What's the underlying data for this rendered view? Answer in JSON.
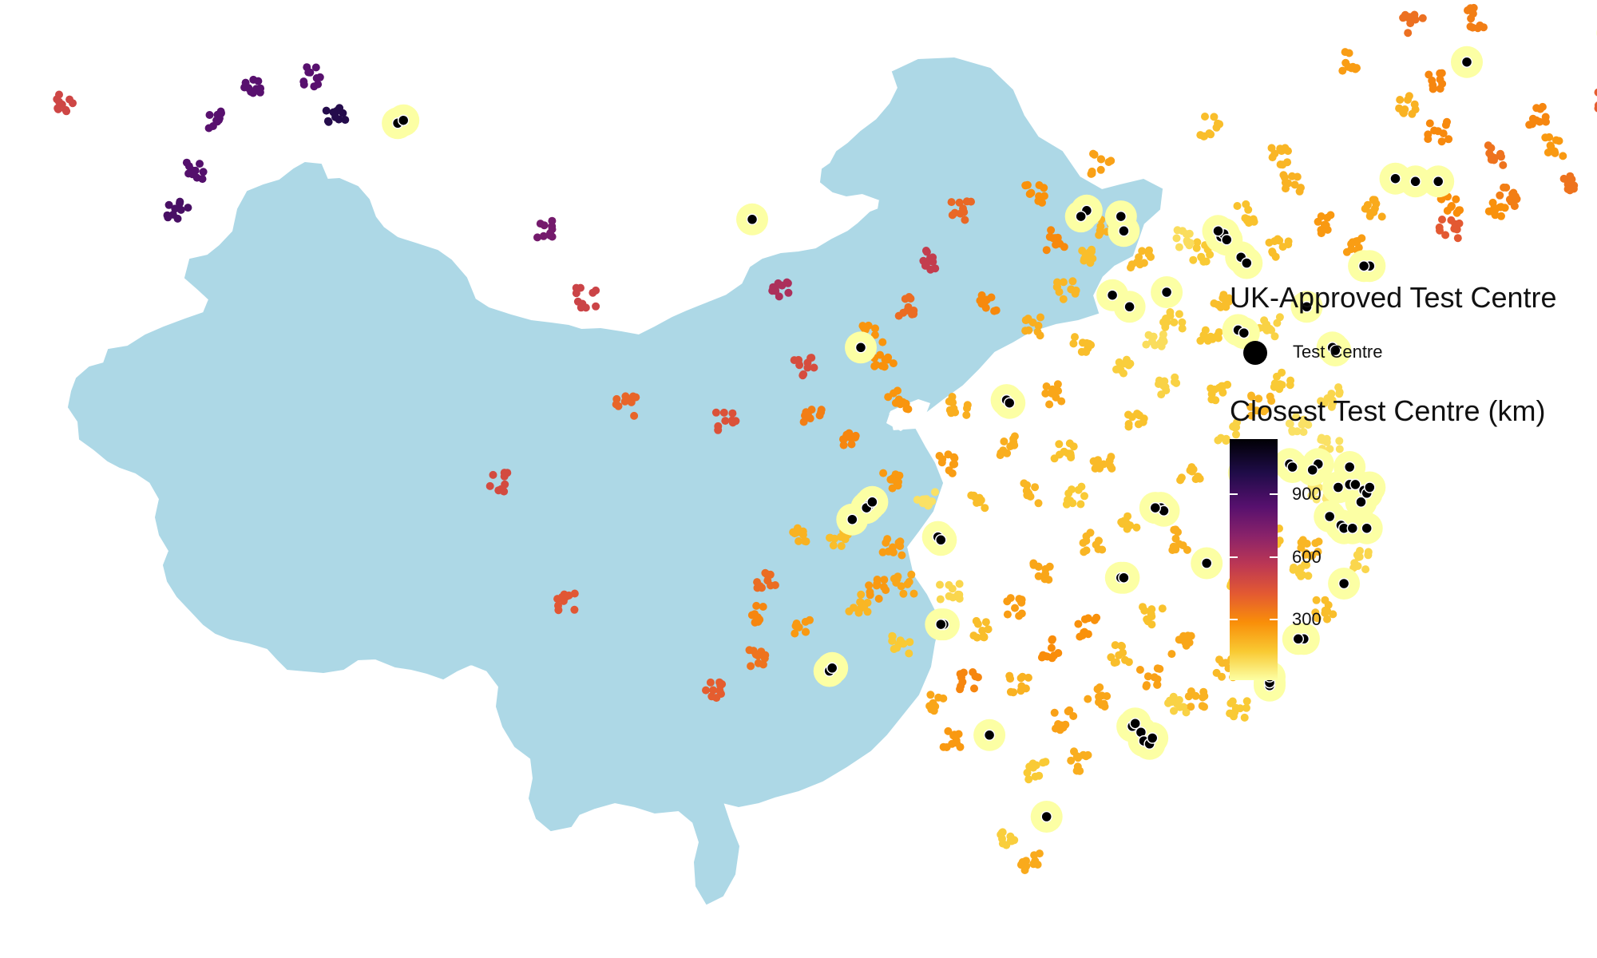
{
  "legend": {
    "points_title": "UK-Approved Test Centre",
    "points_item": "Test Centre",
    "color_title": "Closest Test Centre (km)",
    "ticks": [
      "900",
      "600",
      "300"
    ]
  },
  "colors": {
    "land": "#add8e6",
    "test_centre": "#000000",
    "scale": [
      "#fcffa4",
      "#f9c932",
      "#f98e09",
      "#e35932",
      "#bc3754",
      "#89226a",
      "#57106e",
      "#1f0c48",
      "#000004"
    ]
  },
  "chart_data": {
    "type": "scatter",
    "color_scale": {
      "name": "Closest Test Centre (km)",
      "domain": [
        0,
        1150
      ],
      "ticks": [
        300,
        600,
        900
      ]
    },
    "series": [
      {
        "name": "Test Centre",
        "points": [
          [
            130.1,
            46.9
          ],
          [
            131.0,
            47.3
          ],
          [
            122.5,
            41.9
          ],
          [
            123.2,
            41.8
          ],
          [
            124.0,
            41.8
          ],
          [
            125.0,
            45.9
          ],
          [
            121.6,
            38.9
          ],
          [
            121.4,
            38.9
          ],
          [
            116.4,
            39.9
          ],
          [
            116.5,
            40.0
          ],
          [
            116.3,
            40.1
          ],
          [
            116.6,
            39.8
          ],
          [
            117.1,
            39.2
          ],
          [
            117.3,
            39.0
          ],
          [
            120.3,
            36.1
          ],
          [
            120.4,
            36.0
          ],
          [
            117.0,
            36.7
          ],
          [
            117.2,
            36.6
          ],
          [
            114.5,
            38.0
          ],
          [
            113.0,
            40.1
          ],
          [
            112.9,
            40.6
          ],
          [
            112.6,
            37.9
          ],
          [
            113.2,
            37.5
          ],
          [
            111.7,
            40.8
          ],
          [
            111.5,
            40.6
          ],
          [
            119.4,
            37.5
          ],
          [
            108.9,
            34.3
          ],
          [
            109.0,
            34.2
          ],
          [
            103.8,
            36.1
          ],
          [
            120.9,
            32.0
          ],
          [
            119.8,
            32.1
          ],
          [
            118.8,
            32.1
          ],
          [
            118.9,
            32.0
          ],
          [
            119.6,
            31.9
          ],
          [
            120.5,
            31.3
          ],
          [
            120.9,
            31.4
          ],
          [
            121.4,
            31.2
          ],
          [
            121.5,
            31.1
          ],
          [
            121.6,
            31.3
          ],
          [
            121.3,
            30.8
          ],
          [
            121.1,
            31.4
          ],
          [
            117.3,
            31.9
          ],
          [
            117.2,
            31.8
          ],
          [
            114.3,
            30.6
          ],
          [
            114.4,
            30.5
          ],
          [
            114.1,
            30.6
          ],
          [
            104.1,
            30.7
          ],
          [
            104.0,
            30.6
          ],
          [
            104.2,
            30.8
          ],
          [
            103.5,
            30.2
          ],
          [
            106.5,
            29.6
          ],
          [
            106.6,
            29.5
          ],
          [
            112.9,
            28.2
          ],
          [
            113.0,
            28.2
          ],
          [
            115.9,
            28.7
          ],
          [
            120.2,
            30.3
          ],
          [
            120.6,
            30.0
          ],
          [
            120.7,
            29.9
          ],
          [
            121.0,
            29.9
          ],
          [
            121.5,
            29.9
          ],
          [
            120.7,
            28.0
          ],
          [
            119.3,
            26.1
          ],
          [
            119.1,
            26.1
          ],
          [
            118.1,
            24.5
          ],
          [
            118.1,
            24.6
          ],
          [
            118.1,
            24.8
          ],
          [
            106.7,
            26.6
          ],
          [
            106.6,
            26.6
          ],
          [
            102.7,
            25.0
          ],
          [
            102.8,
            25.1
          ],
          [
            108.3,
            22.8
          ],
          [
            113.3,
            23.1
          ],
          [
            113.4,
            23.2
          ],
          [
            113.6,
            22.9
          ],
          [
            113.7,
            22.6
          ],
          [
            113.9,
            22.5
          ],
          [
            114.0,
            22.7
          ],
          [
            110.3,
            20.0
          ],
          [
            87.6,
            43.8
          ],
          [
            87.8,
            43.9
          ],
          [
            100.0,
            40.5
          ]
        ]
      },
      {
        "name": "Closest Test Centre (km)",
        "points": [
          [
            81.3,
            43.9,
            860
          ],
          [
            80.5,
            42.1,
            870
          ],
          [
            82.5,
            45.1,
            860
          ],
          [
            79.9,
            40.8,
            900
          ],
          [
            75.9,
            44.5,
            510
          ],
          [
            85.4,
            44.1,
            990
          ],
          [
            84.6,
            45.4,
            860
          ],
          [
            92.8,
            40.2,
            780
          ],
          [
            94.2,
            37.8,
            520
          ],
          [
            91.1,
            31.5,
            490
          ],
          [
            93.5,
            27.4,
            440
          ],
          [
            98.6,
            24.4,
            420
          ],
          [
            100.1,
            25.5,
            360
          ],
          [
            95.6,
            34.1,
            400
          ],
          [
            101.8,
            35.5,
            480
          ],
          [
            104.2,
            36.5,
            270
          ],
          [
            105.4,
            37.5,
            380
          ],
          [
            106.3,
            39.1,
            550
          ],
          [
            107.3,
            40.8,
            390
          ],
          [
            101.0,
            38.0,
            620
          ],
          [
            126.8,
            49.6,
            610
          ],
          [
            122.0,
            50.2,
            640
          ],
          [
            125.3,
            47.4,
            330
          ],
          [
            127.5,
            44.1,
            310
          ],
          [
            126.0,
            42.7,
            360
          ],
          [
            124.0,
            43.5,
            300
          ],
          [
            118.5,
            42.7,
            190
          ],
          [
            123.1,
            47.2,
            370
          ],
          [
            129.9,
            44.6,
            420
          ],
          [
            130.1,
            43.1,
            500
          ],
          [
            128.4,
            41.8,
            360
          ],
          [
            126.0,
            40.9,
            280
          ],
          [
            124.4,
            40.2,
            430
          ],
          [
            121.1,
            39.6,
            250
          ],
          [
            118.9,
            41.8,
            200
          ],
          [
            117.2,
            40.7,
            160
          ],
          [
            115.7,
            39.4,
            140
          ],
          [
            113.6,
            39.2,
            180
          ],
          [
            111.9,
            39.3,
            170
          ],
          [
            111.0,
            38.1,
            190
          ],
          [
            110.6,
            39.8,
            300
          ],
          [
            112.4,
            40.2,
            200
          ],
          [
            109.8,
            36.8,
            210
          ],
          [
            108.3,
            37.7,
            300
          ],
          [
            107.2,
            34.1,
            210
          ],
          [
            105.1,
            34.3,
            270
          ],
          [
            104.6,
            35.5,
            280
          ],
          [
            103.3,
            33.0,
            310
          ],
          [
            102.1,
            33.8,
            330
          ],
          [
            99.1,
            33.6,
            460
          ],
          [
            101.6,
            29.8,
            200
          ],
          [
            100.5,
            28.1,
            380
          ],
          [
            100.1,
            26.9,
            310
          ],
          [
            101.8,
            26.6,
            260
          ],
          [
            103.7,
            27.3,
            190
          ],
          [
            105.3,
            28.0,
            230
          ],
          [
            107.8,
            30.7,
            170
          ],
          [
            109.7,
            31.1,
            190
          ],
          [
            111.3,
            31.0,
            140
          ],
          [
            110.9,
            32.6,
            160
          ],
          [
            112.3,
            32.1,
            180
          ],
          [
            113.4,
            33.7,
            160
          ],
          [
            114.5,
            34.8,
            120
          ],
          [
            116.4,
            34.5,
            150
          ],
          [
            117.8,
            34.1,
            190
          ],
          [
            116.6,
            33.2,
            120
          ],
          [
            115.3,
            31.8,
            170
          ],
          [
            113.2,
            30.1,
            160
          ],
          [
            111.9,
            29.4,
            190
          ],
          [
            110.2,
            28.4,
            230
          ],
          [
            109.2,
            27.2,
            250
          ],
          [
            110.4,
            25.8,
            290
          ],
          [
            111.7,
            26.5,
            280
          ],
          [
            112.9,
            25.6,
            170
          ],
          [
            114.0,
            26.9,
            160
          ],
          [
            115.0,
            25.9,
            230
          ],
          [
            116.9,
            27.9,
            140
          ],
          [
            117.3,
            29.1,
            150
          ],
          [
            115.0,
            29.5,
            210
          ],
          [
            118.1,
            29.7,
            160
          ],
          [
            119.2,
            28.6,
            130
          ],
          [
            120.0,
            27.1,
            170
          ],
          [
            117.6,
            26.6,
            160
          ],
          [
            116.6,
            25.1,
            180
          ],
          [
            115.5,
            24.0,
            200
          ],
          [
            113.9,
            24.8,
            240
          ],
          [
            112.1,
            24.1,
            230
          ],
          [
            110.9,
            23.3,
            240
          ],
          [
            109.3,
            24.5,
            200
          ],
          [
            107.6,
            24.7,
            310
          ],
          [
            107.0,
            22.6,
            260
          ],
          [
            109.9,
            21.6,
            140
          ],
          [
            111.4,
            21.9,
            210
          ],
          [
            114.9,
            23.8,
            120
          ],
          [
            117.0,
            23.7,
            140
          ],
          [
            109.7,
            18.5,
            220
          ],
          [
            108.9,
            19.3,
            130
          ],
          [
            106.4,
            23.9,
            230
          ],
          [
            105.2,
            25.9,
            140
          ],
          [
            104.4,
            27.8,
            260
          ],
          [
            106.9,
            27.7,
            110
          ],
          [
            108.1,
            26.5,
            170
          ],
          [
            104.9,
            29.3,
            250
          ],
          [
            106.1,
            30.8,
            80
          ],
          [
            103.0,
            29.6,
            170
          ],
          [
            104.8,
            31.5,
            260
          ],
          [
            106.9,
            32.1,
            250
          ],
          [
            109.0,
            32.7,
            210
          ],
          [
            110.6,
            34.5,
            230
          ],
          [
            111.5,
            36.2,
            170
          ],
          [
            112.9,
            35.5,
            130
          ],
          [
            114.1,
            36.2,
            90
          ],
          [
            116.0,
            36.4,
            150
          ],
          [
            118.1,
            36.8,
            120
          ],
          [
            118.6,
            35.0,
            140
          ],
          [
            120.2,
            34.4,
            110
          ],
          [
            119.1,
            33.5,
            80
          ],
          [
            117.9,
            31.2,
            130
          ],
          [
            120.2,
            32.7,
            80
          ],
          [
            119.9,
            31.0,
            60
          ],
          [
            121.2,
            28.8,
            110
          ],
          [
            119.5,
            29.2,
            190
          ],
          [
            116.4,
            37.6,
            170
          ],
          [
            114.7,
            37.1,
            130
          ],
          [
            115.1,
            39.9,
            90
          ],
          [
            118.4,
            39.5,
            170
          ],
          [
            119.9,
            40.3,
            260
          ],
          [
            121.7,
            40.9,
            220
          ],
          [
            124.4,
            41.0,
            290
          ],
          [
            126.5,
            41.3,
            330
          ],
          [
            128.1,
            43.0,
            260
          ],
          [
            123.9,
            45.2,
            310
          ],
          [
            122.9,
            44.4,
            200
          ],
          [
            120.8,
            45.9,
            250
          ],
          [
            116.0,
            43.7,
            170
          ],
          [
            112.2,
            42.4,
            240
          ],
          [
            109.9,
            41.4,
            280
          ]
        ]
      }
    ]
  }
}
